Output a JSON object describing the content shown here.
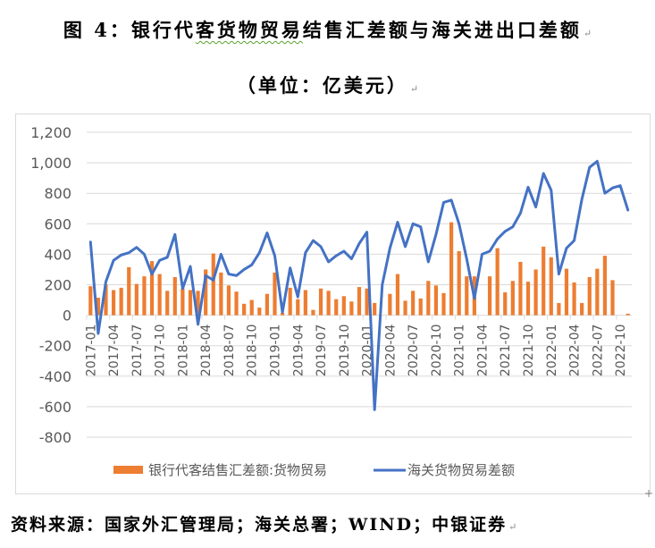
{
  "document": {
    "title_prefix": "图 4：",
    "title_main_a": "银行代",
    "title_main_wavy": "客货物贸易",
    "title_main_b": "结售汇差额与海关进出口差额",
    "subtitle": "（单位：亿美元）",
    "paragraph_mark": "↵",
    "source": "资料来源：国家外汇管理局；海关总署；WIND；中银证券"
  },
  "colors": {
    "bar": "#ED7D31",
    "line": "#4472C4",
    "grid": "#D9D9D9",
    "axis_text": "#595959"
  },
  "chart_data": {
    "type": "bar+line",
    "title": "银行代客货物贸易结售汇差额与海关进出口差额",
    "subtitle": "单位：亿美元",
    "xlabel": "",
    "ylabel": "",
    "ylim": [
      -800,
      1200
    ],
    "yticks": [
      1200,
      1000,
      800,
      600,
      400,
      200,
      0,
      -200,
      -400,
      -600,
      -800
    ],
    "ytick_labels": [
      "1,200",
      "1,000",
      "800",
      "600",
      "400",
      "200",
      "0",
      "-200",
      "-400",
      "-600",
      "-800"
    ],
    "grid": true,
    "legend_position": "bottom",
    "x_tick_labels": [
      "2017-01",
      "2017-04",
      "2017-07",
      "2017-10",
      "2018-01",
      "2018-04",
      "2018-07",
      "2018-10",
      "2019-01",
      "2019-04",
      "2019-07",
      "2019-10",
      "2020-01",
      "2020-04",
      "2020-07",
      "2020-10",
      "2021-01",
      "2021-04",
      "2021-07",
      "2021-10",
      "2022-01",
      "2022-04",
      "2022-07",
      "2022-10"
    ],
    "x": [
      "2017-01",
      "2017-02",
      "2017-03",
      "2017-04",
      "2017-05",
      "2017-06",
      "2017-07",
      "2017-08",
      "2017-09",
      "2017-10",
      "2017-11",
      "2017-12",
      "2018-01",
      "2018-02",
      "2018-03",
      "2018-04",
      "2018-05",
      "2018-06",
      "2018-07",
      "2018-08",
      "2018-09",
      "2018-10",
      "2018-11",
      "2018-12",
      "2019-01",
      "2019-02",
      "2019-03",
      "2019-04",
      "2019-05",
      "2019-06",
      "2019-07",
      "2019-08",
      "2019-09",
      "2019-10",
      "2019-11",
      "2019-12",
      "2020-01",
      "2020-02",
      "2020-03",
      "2020-04",
      "2020-05",
      "2020-06",
      "2020-07",
      "2020-08",
      "2020-09",
      "2020-10",
      "2020-11",
      "2020-12",
      "2021-01",
      "2021-02",
      "2021-03",
      "2021-04",
      "2021-05",
      "2021-06",
      "2021-07",
      "2021-08",
      "2021-09",
      "2021-10",
      "2021-11",
      "2021-12",
      "2022-01",
      "2022-02",
      "2022-03",
      "2022-04",
      "2022-05",
      "2022-06",
      "2022-07",
      "2022-08",
      "2022-09",
      "2022-10",
      "2022-11"
    ],
    "series": [
      {
        "name": "银行代客结售汇差额:货物贸易",
        "type": "bar",
        "values": [
          190,
          115,
          200,
          165,
          180,
          315,
          205,
          255,
          355,
          270,
          160,
          250,
          175,
          165,
          160,
          300,
          405,
          280,
          195,
          155,
          75,
          100,
          50,
          140,
          280,
          15,
          180,
          105,
          165,
          35,
          175,
          160,
          105,
          125,
          90,
          185,
          175,
          80,
          0,
          140,
          270,
          95,
          160,
          110,
          225,
          195,
          145,
          610,
          420,
          255,
          255,
          0,
          255,
          440,
          150,
          225,
          350,
          220,
          300,
          450,
          380,
          80,
          305,
          215,
          80,
          250,
          305,
          390,
          230,
          0,
          10
        ]
      },
      {
        "name": "海关货物贸易差额",
        "type": "line",
        "values": [
          480,
          -120,
          220,
          360,
          395,
          410,
          445,
          400,
          270,
          360,
          380,
          530,
          175,
          320,
          -60,
          260,
          230,
          400,
          270,
          260,
          300,
          330,
          410,
          540,
          390,
          20,
          310,
          120,
          410,
          490,
          450,
          350,
          390,
          420,
          370,
          470,
          545,
          -620,
          200,
          440,
          610,
          450,
          600,
          580,
          350,
          530,
          740,
          755,
          600,
          370,
          110,
          400,
          420,
          500,
          550,
          580,
          670,
          840,
          710,
          930,
          820,
          270,
          440,
          490,
          760,
          970,
          1010,
          800,
          835,
          850,
          690
        ]
      }
    ]
  },
  "legend": {
    "bar_label": "银行代客结售汇差额:货物贸易",
    "line_label": "海关货物贸易差额"
  }
}
